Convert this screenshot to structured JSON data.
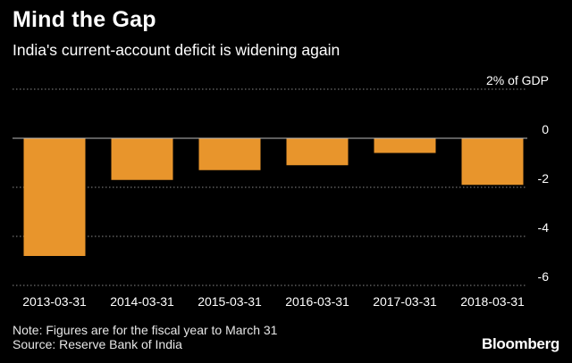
{
  "header": {
    "title": "Mind the Gap",
    "subtitle": "India's current-account deficit is widening again"
  },
  "footer": {
    "note": "Note: Figures are for the fiscal year to March 31",
    "source": "Source: Reserve Bank of India",
    "brand": "Bloomberg"
  },
  "chart_data": {
    "type": "bar",
    "title": "Mind the Gap",
    "subtitle": "India's current-account deficit is widening again",
    "xlabel": "",
    "ylabel": "",
    "unit_label": "% of GDP",
    "categories": [
      "2013-03-31",
      "2014-03-31",
      "2015-03-31",
      "2016-03-31",
      "2017-03-31",
      "2018-03-31"
    ],
    "values": [
      -4.8,
      -1.7,
      -1.3,
      -1.1,
      -0.6,
      -1.9
    ],
    "ylim": [
      -6,
      2
    ],
    "yticks": [
      2,
      0,
      -2,
      -4,
      -6
    ],
    "grid": true,
    "bar_color": "#e8952c",
    "grid_color": "#8a8a8a",
    "zero_line_color": "#bbbbbb",
    "legend": "none"
  }
}
